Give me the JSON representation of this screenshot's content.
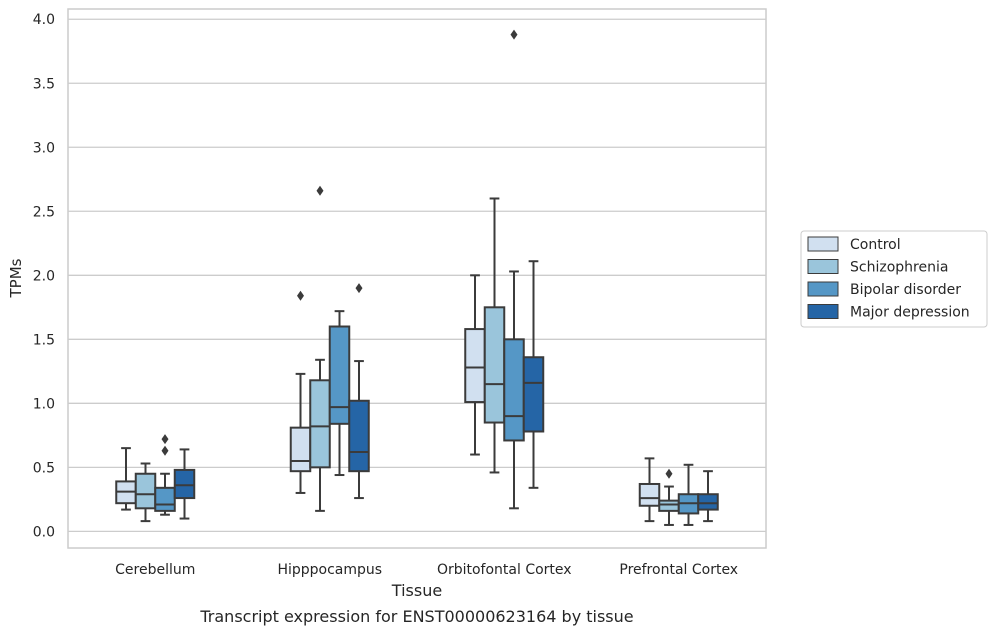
{
  "chart_data": {
    "type": "box",
    "title": "",
    "caption": "Transcript expression for ENST00000623164 by tissue",
    "xlabel": "Tissue",
    "ylabel": "TPMs",
    "ylim": [
      -0.13,
      4.08
    ],
    "yticks": [
      0.0,
      0.5,
      1.0,
      1.5,
      2.0,
      2.5,
      3.0,
      3.5,
      4.0
    ],
    "ytick_labels": [
      "0.0",
      "0.5",
      "1.0",
      "1.5",
      "2.0",
      "2.5",
      "3.0",
      "3.5",
      "4.0"
    ],
    "grid": "horizontal",
    "legend_position": "right",
    "categories": [
      "Cerebellum",
      "Hipppocampus",
      "Orbitofontal Cortex",
      "Prefrontal Cortex"
    ],
    "series": [
      {
        "name": "Control",
        "color": "#d1e0f0",
        "boxes": [
          {
            "whislo": 0.17,
            "q1": 0.22,
            "med": 0.31,
            "q3": 0.39,
            "whishi": 0.65,
            "fliers": []
          },
          {
            "whislo": 0.3,
            "q1": 0.47,
            "med": 0.55,
            "q3": 0.81,
            "whishi": 1.23,
            "fliers": [
              1.84
            ]
          },
          {
            "whislo": 0.6,
            "q1": 1.01,
            "med": 1.28,
            "q3": 1.58,
            "whishi": 2.0,
            "fliers": []
          },
          {
            "whislo": 0.08,
            "q1": 0.2,
            "med": 0.26,
            "q3": 0.37,
            "whishi": 0.57,
            "fliers": []
          }
        ]
      },
      {
        "name": "Schizophrenia",
        "color": "#9ac5db",
        "boxes": [
          {
            "whislo": 0.08,
            "q1": 0.18,
            "med": 0.29,
            "q3": 0.45,
            "whishi": 0.53,
            "fliers": []
          },
          {
            "whislo": 0.16,
            "q1": 0.5,
            "med": 0.82,
            "q3": 1.18,
            "whishi": 1.34,
            "fliers": [
              2.66
            ]
          },
          {
            "whislo": 0.46,
            "q1": 0.85,
            "med": 1.15,
            "q3": 1.75,
            "whishi": 2.6,
            "fliers": []
          },
          {
            "whislo": 0.05,
            "q1": 0.16,
            "med": 0.21,
            "q3": 0.24,
            "whishi": 0.35,
            "fliers": [
              0.45
            ]
          }
        ]
      },
      {
        "name": "Bipolar disorder",
        "color": "#5597c6",
        "boxes": [
          {
            "whislo": 0.13,
            "q1": 0.16,
            "med": 0.21,
            "q3": 0.34,
            "whishi": 0.45,
            "fliers": [
              0.63,
              0.72
            ]
          },
          {
            "whislo": 0.44,
            "q1": 0.84,
            "med": 0.97,
            "q3": 1.6,
            "whishi": 1.72,
            "fliers": []
          },
          {
            "whislo": 0.18,
            "q1": 0.71,
            "med": 0.9,
            "q3": 1.5,
            "whishi": 2.03,
            "fliers": [
              3.88
            ]
          },
          {
            "whislo": 0.05,
            "q1": 0.14,
            "med": 0.22,
            "q3": 0.29,
            "whishi": 0.52,
            "fliers": []
          }
        ]
      },
      {
        "name": "Major depression",
        "color": "#2565a6",
        "boxes": [
          {
            "whislo": 0.1,
            "q1": 0.26,
            "med": 0.36,
            "q3": 0.48,
            "whishi": 0.64,
            "fliers": []
          },
          {
            "whislo": 0.26,
            "q1": 0.47,
            "med": 0.62,
            "q3": 1.02,
            "whishi": 1.33,
            "fliers": [
              1.9
            ]
          },
          {
            "whislo": 0.34,
            "q1": 0.78,
            "med": 1.16,
            "q3": 1.36,
            "whishi": 2.11,
            "fliers": []
          },
          {
            "whislo": 0.08,
            "q1": 0.17,
            "med": 0.22,
            "q3": 0.29,
            "whishi": 0.47,
            "fliers": []
          }
        ]
      }
    ]
  }
}
